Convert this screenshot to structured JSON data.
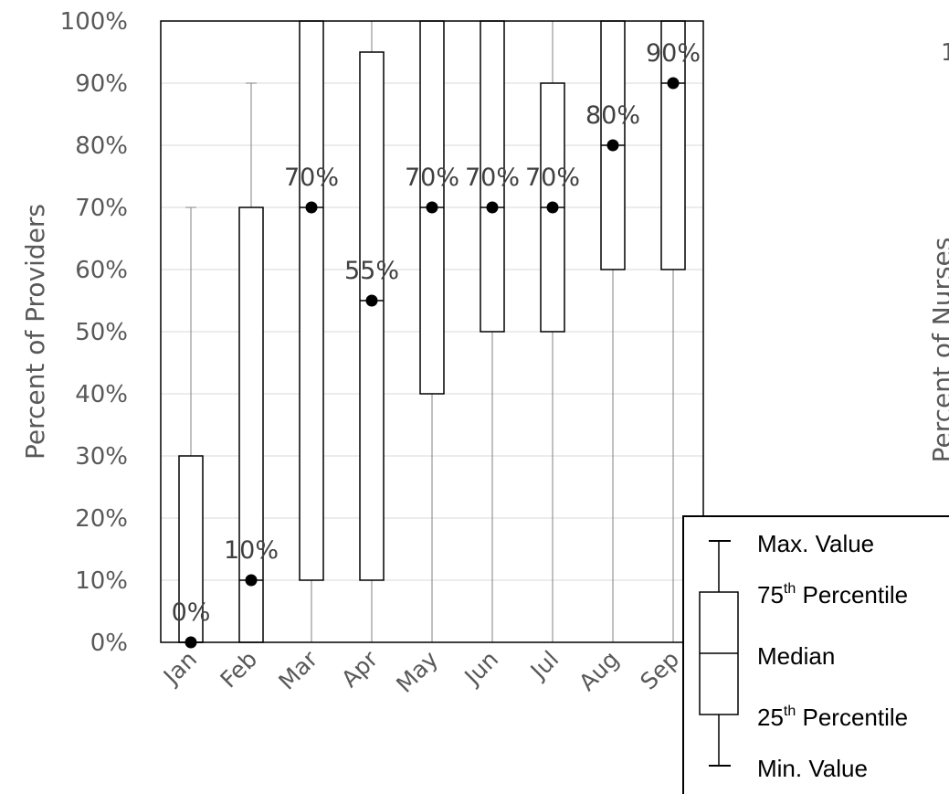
{
  "chart_data": [
    {
      "type": "box",
      "ylabel": "Percent of Providers",
      "categories": [
        "Jan",
        "Feb",
        "Mar",
        "Apr",
        "May",
        "Jun",
        "Jul",
        "Aug",
        "Sep"
      ],
      "ylim": [
        0,
        100
      ],
      "yticks": [
        "0%",
        "10%",
        "20%",
        "30%",
        "40%",
        "50%",
        "60%",
        "70%",
        "80%",
        "90%",
        "100%"
      ],
      "grid": true,
      "series": [
        {
          "category": "Jan",
          "min": 0,
          "q1": 0,
          "median": 0,
          "q3": 30,
          "max": 70,
          "label": "0%"
        },
        {
          "category": "Feb",
          "min": 0,
          "q1": 0,
          "median": 10,
          "q3": 70,
          "max": 90,
          "label": "10%"
        },
        {
          "category": "Mar",
          "min": 0,
          "q1": 10,
          "median": 70,
          "q3": 100,
          "max": 100,
          "label": "70%"
        },
        {
          "category": "Apr",
          "min": 0,
          "q1": 10,
          "median": 55,
          "q3": 95,
          "max": 100,
          "label": "55%"
        },
        {
          "category": "May",
          "min": 0,
          "q1": 40,
          "median": 70,
          "q3": 100,
          "max": 100,
          "label": "70%"
        },
        {
          "category": "Jun",
          "min": 0,
          "q1": 50,
          "median": 70,
          "q3": 100,
          "max": 100,
          "label": "70%"
        },
        {
          "category": "Jul",
          "min": 0,
          "q1": 50,
          "median": 70,
          "q3": 90,
          "max": 100,
          "label": "70%"
        },
        {
          "category": "Aug",
          "min": 0,
          "q1": 60,
          "median": 80,
          "q3": 100,
          "max": 100,
          "label": "80%"
        },
        {
          "category": "Sep",
          "min": 0,
          "q1": 60,
          "median": 90,
          "q3": 100,
          "max": 100,
          "label": "90%"
        }
      ]
    },
    {
      "type": "box",
      "ylabel": "Percent of Nurses",
      "yticks_visible": [
        "1"
      ],
      "note": "second chart is cut off at the right edge"
    }
  ],
  "legend": {
    "placement": "bottom-right",
    "items": [
      {
        "text": "Max. Value",
        "sup": ""
      },
      {
        "text": "75",
        "sup": "th",
        "suffix": " Percentile"
      },
      {
        "text": "Median",
        "sup": ""
      },
      {
        "text": "25",
        "sup": "th",
        "suffix": " Percentile"
      },
      {
        "text": "Min. Value",
        "sup": ""
      }
    ]
  }
}
